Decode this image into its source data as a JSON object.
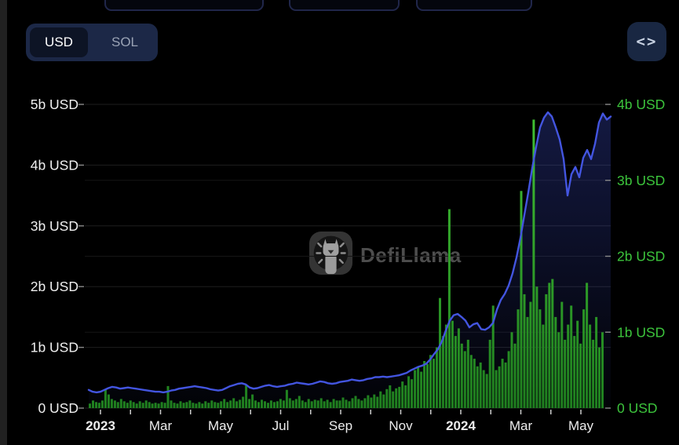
{
  "header": {
    "currency_toggle": {
      "options": [
        "USD",
        "SOL"
      ],
      "selected": "USD"
    },
    "embed_button": {
      "icon_label": "<>"
    }
  },
  "watermark": {
    "brand": "DefiLlama"
  },
  "chart_data": {
    "type": "line+bar",
    "title": "",
    "grid": "horizontal",
    "background": "#000000",
    "left_axis": {
      "unit": "USD",
      "ticks": [
        "0 USD",
        "1b USD",
        "2b USD",
        "3b USD",
        "4b USD",
        "5b USD"
      ],
      "range_billions": [
        0,
        5
      ],
      "label_color": "#f0f0f0"
    },
    "right_axis": {
      "unit": "USD",
      "ticks": [
        "0 USD",
        "1b USD",
        "2b USD",
        "3b USD",
        "4b USD"
      ],
      "range_billions": [
        0,
        4
      ],
      "label_color": "#3cc43c"
    },
    "x_axis": {
      "labels": [
        {
          "text": "2023",
          "bold": true
        },
        {
          "text": "Mar",
          "bold": false
        },
        {
          "text": "May",
          "bold": false
        },
        {
          "text": "Jul",
          "bold": false
        },
        {
          "text": "Sep",
          "bold": false
        },
        {
          "text": "Nov",
          "bold": false
        },
        {
          "text": "2024",
          "bold": true
        },
        {
          "text": "Mar",
          "bold": false
        },
        {
          "text": "May",
          "bold": false
        }
      ]
    },
    "series": [
      {
        "name": "blue-line-series",
        "type": "line",
        "axis": "left",
        "color": "#4355e0",
        "fill_color": "#4355de",
        "unit": "billion USD",
        "values": [
          0.3,
          0.27,
          0.26,
          0.27,
          0.3,
          0.33,
          0.35,
          0.34,
          0.32,
          0.33,
          0.34,
          0.33,
          0.32,
          0.31,
          0.3,
          0.29,
          0.28,
          0.27,
          0.27,
          0.26,
          0.27,
          0.29,
          0.3,
          0.32,
          0.33,
          0.34,
          0.35,
          0.36,
          0.35,
          0.34,
          0.33,
          0.31,
          0.3,
          0.29,
          0.3,
          0.33,
          0.36,
          0.38,
          0.4,
          0.41,
          0.39,
          0.34,
          0.32,
          0.33,
          0.35,
          0.37,
          0.38,
          0.36,
          0.35,
          0.36,
          0.37,
          0.39,
          0.4,
          0.42,
          0.41,
          0.4,
          0.39,
          0.4,
          0.42,
          0.44,
          0.43,
          0.41,
          0.4,
          0.41,
          0.43,
          0.44,
          0.45,
          0.47,
          0.46,
          0.45,
          0.46,
          0.48,
          0.49,
          0.51,
          0.51,
          0.52,
          0.51,
          0.52,
          0.53,
          0.54,
          0.56,
          0.58,
          0.62,
          0.65,
          0.68,
          0.7,
          0.73,
          0.8,
          0.89,
          0.97,
          1.1,
          1.28,
          1.44,
          1.53,
          1.55,
          1.5,
          1.44,
          1.33,
          1.38,
          1.4,
          1.3,
          1.29,
          1.33,
          1.4,
          1.62,
          1.78,
          1.88,
          2.02,
          2.22,
          2.48,
          2.8,
          3.18,
          3.55,
          3.95,
          4.3,
          4.62,
          4.78,
          4.87,
          4.8,
          4.62,
          4.42,
          4.1,
          3.5,
          3.85,
          3.97,
          3.8,
          4.12,
          4.25,
          4.1,
          4.35,
          4.7,
          4.85,
          4.75,
          4.8
        ]
      },
      {
        "name": "green-bar-series",
        "type": "bar",
        "axis": "right",
        "color": "#2f9e28",
        "unit": "billion USD",
        "values": [
          0.06,
          0.1,
          0.08,
          0.07,
          0.1,
          0.25,
          0.18,
          0.12,
          0.1,
          0.08,
          0.12,
          0.09,
          0.07,
          0.1,
          0.08,
          0.06,
          0.09,
          0.07,
          0.1,
          0.08,
          0.06,
          0.07,
          0.06,
          0.08,
          0.07,
          0.29,
          0.1,
          0.07,
          0.06,
          0.09,
          0.07,
          0.08,
          0.1,
          0.07,
          0.06,
          0.08,
          0.06,
          0.09,
          0.07,
          0.1,
          0.08,
          0.07,
          0.09,
          0.12,
          0.08,
          0.1,
          0.13,
          0.09,
          0.11,
          0.15,
          0.3,
          0.12,
          0.18,
          0.1,
          0.08,
          0.11,
          0.09,
          0.07,
          0.1,
          0.08,
          0.09,
          0.12,
          0.1,
          0.24,
          0.13,
          0.1,
          0.12,
          0.16,
          0.1,
          0.08,
          0.12,
          0.09,
          0.11,
          0.1,
          0.13,
          0.09,
          0.11,
          0.08,
          0.12,
          0.1,
          0.1,
          0.14,
          0.11,
          0.09,
          0.13,
          0.16,
          0.12,
          0.1,
          0.13,
          0.17,
          0.14,
          0.18,
          0.15,
          0.22,
          0.18,
          0.25,
          0.3,
          0.22,
          0.26,
          0.28,
          0.35,
          0.3,
          0.42,
          0.38,
          0.5,
          0.55,
          0.48,
          0.62,
          0.58,
          0.7,
          0.65,
          0.8,
          1.45,
          0.95,
          1.1,
          2.62,
          1.15,
          0.95,
          1.05,
          0.85,
          0.75,
          0.9,
          0.7,
          0.65,
          0.55,
          0.6,
          0.5,
          0.45,
          0.9,
          1.35,
          0.5,
          0.55,
          0.65,
          0.6,
          0.75,
          1.0,
          0.85,
          1.3,
          2.86,
          1.5,
          1.2,
          1.4,
          3.8,
          1.6,
          1.3,
          1.1,
          1.5,
          1.65,
          1.7,
          1.2,
          1.0,
          1.4,
          0.9,
          1.1,
          1.35,
          0.95,
          1.15,
          0.85,
          1.3,
          1.65,
          1.1,
          0.9,
          1.2,
          0.8,
          1.0
        ]
      }
    ]
  }
}
